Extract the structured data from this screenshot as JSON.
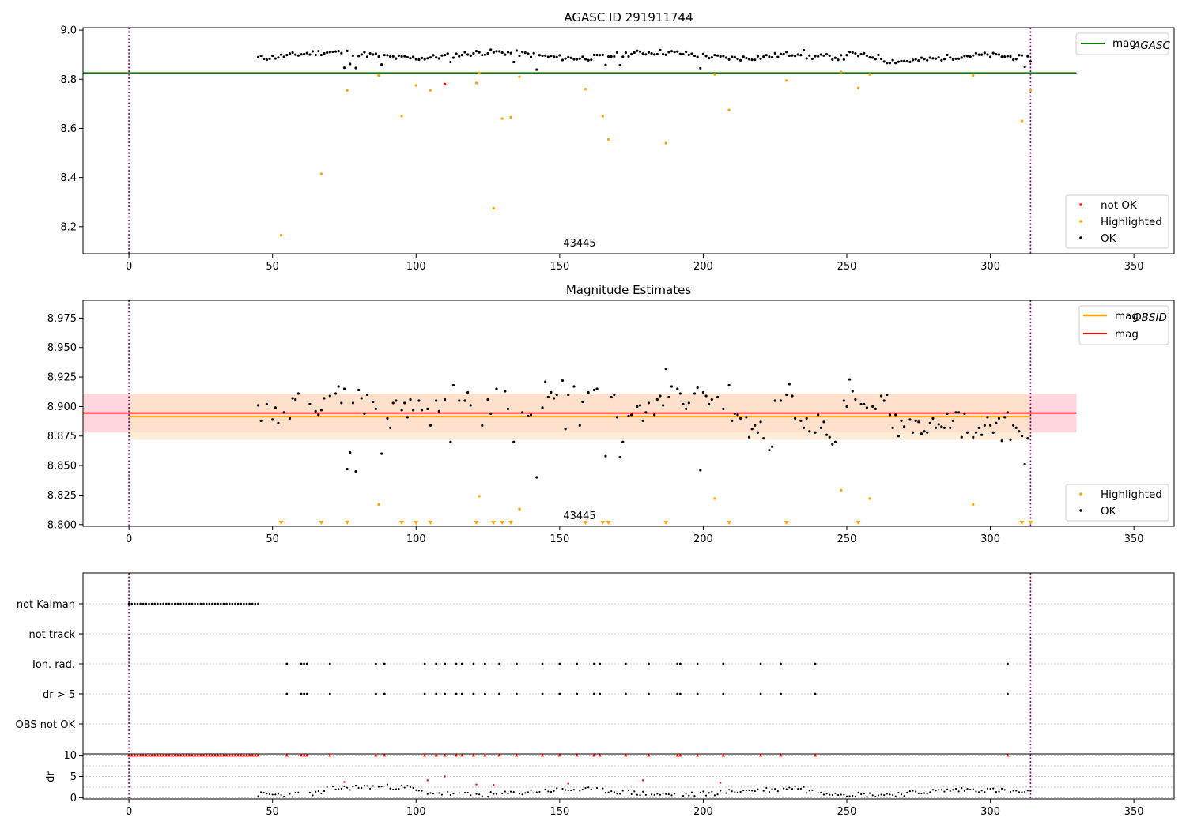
{
  "chart_data": [
    {
      "id": "agasc",
      "type": "scatter",
      "title": "AGASC ID 291911744",
      "annotation": "43445",
      "xlim": [
        -16,
        364
      ],
      "ylim": [
        8.09,
        9.01
      ],
      "xticks": [
        "0",
        "50",
        "100",
        "150",
        "200",
        "250",
        "300",
        "350"
      ],
      "yticks": [
        "8.2",
        "8.4",
        "8.6",
        "8.8",
        "9.0"
      ],
      "lines": [
        {
          "name": "mag_AGASC",
          "legend_main": "mag",
          "legend_sub": "AGASC",
          "y": 8.826,
          "x": [
            -16,
            330
          ],
          "color": "#008000"
        }
      ],
      "vlines": [
        0,
        314
      ],
      "series": [
        {
          "name": "not OK",
          "color": "#ff0000"
        },
        {
          "name": "Highlighted",
          "color": "#ffa500"
        },
        {
          "name": "OK",
          "color": "#000000"
        }
      ],
      "not_ok_points": [
        [
          110,
          8.78
        ]
      ],
      "highlighted_points": [
        [
          53,
          8.165
        ],
        [
          67,
          8.415
        ],
        [
          76,
          8.755
        ],
        [
          87,
          8.815
        ],
        [
          95,
          8.65
        ],
        [
          100,
          8.775
        ],
        [
          105,
          8.755
        ],
        [
          121,
          8.785
        ],
        [
          122,
          8.825
        ],
        [
          127,
          8.275
        ],
        [
          130,
          8.64
        ],
        [
          133,
          8.645
        ],
        [
          136,
          8.81
        ],
        [
          159,
          8.76
        ],
        [
          165,
          8.65
        ],
        [
          167,
          8.555
        ],
        [
          187,
          8.54
        ],
        [
          204,
          8.82
        ],
        [
          209,
          8.675
        ],
        [
          229,
          8.795
        ],
        [
          248,
          8.83
        ],
        [
          254,
          8.765
        ],
        [
          258,
          8.82
        ],
        [
          294,
          8.815
        ],
        [
          311,
          8.63
        ],
        [
          314,
          8.755
        ]
      ],
      "ok_band": {
        "x_start": 45,
        "x_end": 314,
        "y_mean": 8.898,
        "dips": [
          [
            75,
            8.847
          ],
          [
            77,
            8.862
          ],
          [
            79,
            8.846
          ],
          [
            88,
            8.86
          ],
          [
            112,
            8.87
          ],
          [
            134,
            8.87
          ],
          [
            142,
            8.839
          ],
          [
            166,
            8.858
          ],
          [
            171,
            8.857
          ],
          [
            199,
            8.845
          ],
          [
            312,
            8.851
          ]
        ]
      },
      "legend_top": "top-right",
      "legend_bottom": "lower-right"
    },
    {
      "id": "estimates",
      "type": "scatter",
      "title": "Magnitude Estimates",
      "annotation": "43445",
      "xlim": [
        -16,
        364
      ],
      "ylim": [
        8.7985,
        8.99
      ],
      "xticks": [
        "0",
        "50",
        "100",
        "150",
        "200",
        "250",
        "300",
        "350"
      ],
      "yticks": [
        "8.800",
        "8.825",
        "8.850",
        "8.875",
        "8.900",
        "8.925",
        "8.950",
        "8.975"
      ],
      "lines": [
        {
          "name": "mag_OBSID",
          "legend_main": "mag",
          "legend_sub": "OBSID",
          "y": 8.8915,
          "x": [
            0,
            314
          ],
          "color": "#ffa500",
          "band": [
            8.872,
            8.911
          ],
          "band_color": "#ffe4c4"
        },
        {
          "name": "mag",
          "legend_main": "mag",
          "legend_sub": "",
          "y": 8.8945,
          "x": [
            -16,
            330
          ],
          "color": "#ff0000",
          "band": [
            8.878,
            8.911
          ],
          "band_color": "#ffb6c1"
        }
      ],
      "vlines": [
        0,
        314
      ],
      "series": [
        {
          "name": "Highlighted",
          "color": "#ffa500"
        },
        {
          "name": "OK",
          "color": "#000000"
        }
      ],
      "highlighted_points": [
        [
          87,
          8.817
        ],
        [
          122,
          8.824
        ],
        [
          136,
          8.813
        ],
        [
          204,
          8.822
        ],
        [
          248,
          8.829
        ],
        [
          258,
          8.822
        ],
        [
          294,
          8.817
        ]
      ],
      "lower_limit_markers_x": [
        53,
        67,
        76,
        95,
        100,
        105,
        121,
        127,
        130,
        133,
        159,
        165,
        167,
        187,
        209,
        229,
        254,
        311,
        314
      ],
      "ok_points": [
        [
          45,
          8.901
        ],
        [
          46,
          8.888
        ],
        [
          48,
          8.902
        ],
        [
          50,
          8.889
        ],
        [
          51,
          8.899
        ],
        [
          52,
          8.886
        ],
        [
          54,
          8.895
        ],
        [
          56,
          8.89
        ],
        [
          57,
          8.907
        ],
        [
          58,
          8.906
        ],
        [
          59,
          8.911
        ],
        [
          63,
          8.902
        ],
        [
          65,
          8.896
        ],
        [
          66,
          8.893
        ],
        [
          67,
          8.897
        ],
        [
          68,
          8.907
        ],
        [
          70,
          8.909
        ],
        [
          72,
          8.911
        ],
        [
          73,
          8.917
        ],
        [
          74,
          8.903
        ],
        [
          75,
          8.915
        ],
        [
          76,
          8.847
        ],
        [
          77,
          8.861
        ],
        [
          78,
          8.903
        ],
        [
          79,
          8.845
        ],
        [
          80,
          8.914
        ],
        [
          81,
          8.907
        ],
        [
          82,
          8.894
        ],
        [
          83,
          8.91
        ],
        [
          85,
          8.904
        ],
        [
          86,
          8.898
        ],
        [
          88,
          8.86
        ],
        [
          90,
          8.89
        ],
        [
          91,
          8.882
        ],
        [
          92,
          8.903
        ],
        [
          93,
          8.905
        ],
        [
          95,
          8.897
        ],
        [
          96,
          8.903
        ],
        [
          97,
          8.891
        ],
        [
          98,
          8.906
        ],
        [
          99,
          8.897
        ],
        [
          101,
          8.905
        ],
        [
          102,
          8.897
        ],
        [
          104,
          8.898
        ],
        [
          105,
          8.884
        ],
        [
          107,
          8.905
        ],
        [
          108,
          8.896
        ],
        [
          110,
          8.906
        ],
        [
          112,
          8.87
        ],
        [
          113,
          8.918
        ],
        [
          115,
          8.905
        ],
        [
          117,
          8.905
        ],
        [
          118,
          8.912
        ],
        [
          119,
          8.901
        ],
        [
          123,
          8.884
        ],
        [
          125,
          8.906
        ],
        [
          126,
          8.894
        ],
        [
          128,
          8.915
        ],
        [
          131,
          8.913
        ],
        [
          132,
          8.898
        ],
        [
          134,
          8.87
        ],
        [
          137,
          8.895
        ],
        [
          139,
          8.892
        ],
        [
          140,
          8.893
        ],
        [
          142,
          8.84
        ],
        [
          144,
          8.899
        ],
        [
          145,
          8.921
        ],
        [
          146,
          8.908
        ],
        [
          147,
          8.912
        ],
        [
          148,
          8.907
        ],
        [
          149,
          8.91
        ],
        [
          151,
          8.922
        ],
        [
          152,
          8.881
        ],
        [
          153,
          8.91
        ],
        [
          155,
          8.917
        ],
        [
          157,
          8.884
        ],
        [
          158,
          8.904
        ],
        [
          160,
          8.912
        ],
        [
          162,
          8.914
        ],
        [
          163,
          8.915
        ],
        [
          166,
          8.858
        ],
        [
          168,
          8.908
        ],
        [
          169,
          8.91
        ],
        [
          170,
          8.891
        ],
        [
          171,
          8.857
        ],
        [
          172,
          8.87
        ],
        [
          174,
          8.892
        ],
        [
          175,
          8.893
        ],
        [
          177,
          8.9
        ],
        [
          178,
          8.901
        ],
        [
          179,
          8.888
        ],
        [
          180,
          8.895
        ],
        [
          181,
          8.903
        ],
        [
          183,
          8.893
        ],
        [
          184,
          8.906
        ],
        [
          185,
          8.909
        ],
        [
          186,
          8.901
        ],
        [
          187,
          8.932
        ],
        [
          188,
          8.908
        ],
        [
          189,
          8.917
        ],
        [
          191,
          8.915
        ],
        [
          192,
          8.911
        ],
        [
          193,
          8.902
        ],
        [
          194,
          8.898
        ],
        [
          195,
          8.903
        ],
        [
          197,
          8.911
        ],
        [
          198,
          8.916
        ],
        [
          199,
          8.846
        ],
        [
          200,
          8.912
        ],
        [
          201,
          8.909
        ],
        [
          202,
          8.902
        ],
        [
          203,
          8.906
        ],
        [
          205,
          8.908
        ],
        [
          207,
          8.898
        ],
        [
          209,
          8.918
        ],
        [
          210,
          8.888
        ],
        [
          211,
          8.894
        ],
        [
          212,
          8.893
        ],
        [
          213,
          8.89
        ],
        [
          215,
          8.891
        ],
        [
          216,
          8.874
        ],
        [
          217,
          8.881
        ],
        [
          218,
          8.884
        ],
        [
          219,
          8.878
        ],
        [
          220,
          8.887
        ],
        [
          221,
          8.873
        ],
        [
          223,
          8.863
        ],
        [
          224,
          8.866
        ],
        [
          225,
          8.905
        ],
        [
          227,
          8.905
        ],
        [
          229,
          8.91
        ],
        [
          230,
          8.919
        ],
        [
          231,
          8.909
        ],
        [
          232,
          8.89
        ],
        [
          234,
          8.888
        ],
        [
          235,
          8.882
        ],
        [
          236,
          8.89
        ],
        [
          237,
          8.879
        ],
        [
          239,
          8.878
        ],
        [
          240,
          8.893
        ],
        [
          241,
          8.882
        ],
        [
          242,
          8.887
        ],
        [
          243,
          8.876
        ],
        [
          244,
          8.874
        ],
        [
          245,
          8.868
        ],
        [
          246,
          8.87
        ],
        [
          249,
          8.905
        ],
        [
          250,
          8.9
        ],
        [
          251,
          8.923
        ],
        [
          252,
          8.913
        ],
        [
          253,
          8.906
        ],
        [
          255,
          8.902
        ],
        [
          256,
          8.902
        ],
        [
          257,
          8.899
        ],
        [
          259,
          8.9
        ],
        [
          260,
          8.898
        ],
        [
          262,
          8.909
        ],
        [
          263,
          8.905
        ],
        [
          264,
          8.91
        ],
        [
          265,
          8.893
        ],
        [
          266,
          8.882
        ],
        [
          267,
          8.893
        ],
        [
          268,
          8.875
        ],
        [
          269,
          8.888
        ],
        [
          270,
          8.883
        ],
        [
          272,
          8.889
        ],
        [
          273,
          8.878
        ],
        [
          274,
          8.888
        ],
        [
          275,
          8.887
        ],
        [
          276,
          8.877
        ],
        [
          277,
          8.879
        ],
        [
          278,
          8.878
        ],
        [
          279,
          8.886
        ],
        [
          280,
          8.89
        ],
        [
          281,
          8.882
        ],
        [
          282,
          8.885
        ],
        [
          283,
          8.883
        ],
        [
          284,
          8.882
        ],
        [
          285,
          8.894
        ],
        [
          286,
          8.882
        ],
        [
          287,
          8.888
        ],
        [
          288,
          8.895
        ],
        [
          289,
          8.895
        ],
        [
          290,
          8.874
        ],
        [
          291,
          8.894
        ],
        [
          292,
          8.878
        ],
        [
          294,
          8.874
        ],
        [
          295,
          8.878
        ],
        [
          296,
          8.882
        ],
        [
          297,
          8.876
        ],
        [
          298,
          8.884
        ],
        [
          299,
          8.891
        ],
        [
          300,
          8.884
        ],
        [
          301,
          8.878
        ],
        [
          302,
          8.886
        ],
        [
          303,
          8.89
        ],
        [
          304,
          8.871
        ],
        [
          305,
          8.891
        ],
        [
          306,
          8.895
        ],
        [
          307,
          8.872
        ],
        [
          308,
          8.884
        ],
        [
          309,
          8.882
        ],
        [
          310,
          8.879
        ],
        [
          311,
          8.875
        ],
        [
          312,
          8.851
        ],
        [
          313,
          8.873
        ]
      ],
      "legend_top": "top-right",
      "legend_bottom": "lower-right"
    },
    {
      "id": "flags",
      "type": "scatter",
      "xlim": [
        -16,
        364
      ],
      "xticks": [
        "0",
        "50",
        "100",
        "150",
        "200",
        "250",
        "300",
        "350"
      ],
      "flag_rows": [
        "not Kalman",
        "not track",
        "Ion. rad.",
        "dr > 5",
        "OBS not OK"
      ],
      "not_kalman_x_range": [
        0,
        45
      ],
      "ion_rad_x": [
        55,
        60,
        61,
        62,
        70,
        86,
        89,
        103,
        107,
        110,
        114,
        116,
        120,
        124,
        129,
        135,
        144,
        150,
        156,
        162,
        164,
        173,
        181,
        191,
        192,
        198,
        207,
        220,
        227,
        239,
        306
      ],
      "dr5_x": [
        55,
        60,
        61,
        62,
        70,
        86,
        89,
        103,
        107,
        110,
        114,
        116,
        120,
        124,
        129,
        135,
        144,
        150,
        156,
        162,
        164,
        173,
        181,
        191,
        192,
        198,
        207,
        220,
        227,
        239,
        306
      ],
      "vlines": [
        0,
        314
      ]
    },
    {
      "id": "dr",
      "type": "scatter",
      "ylabel": "dr",
      "xlim": [
        -16,
        364
      ],
      "ylim": [
        -0.3,
        10.3
      ],
      "xticks": [
        "0",
        "50",
        "100",
        "150",
        "200",
        "250",
        "300",
        "350"
      ],
      "yticks": [
        "0",
        "5",
        "10"
      ],
      "capped_value": 10,
      "red_outliers": [
        [
          75,
          3.7
        ],
        [
          104,
          4.1
        ],
        [
          110,
          5.0
        ],
        [
          121,
          3.1
        ],
        [
          127,
          3.0
        ],
        [
          153,
          3.3
        ],
        [
          179,
          4.1
        ],
        [
          206,
          3.5
        ]
      ],
      "ok_x_range": [
        45,
        314
      ],
      "vlines": [
        0,
        314
      ]
    }
  ]
}
